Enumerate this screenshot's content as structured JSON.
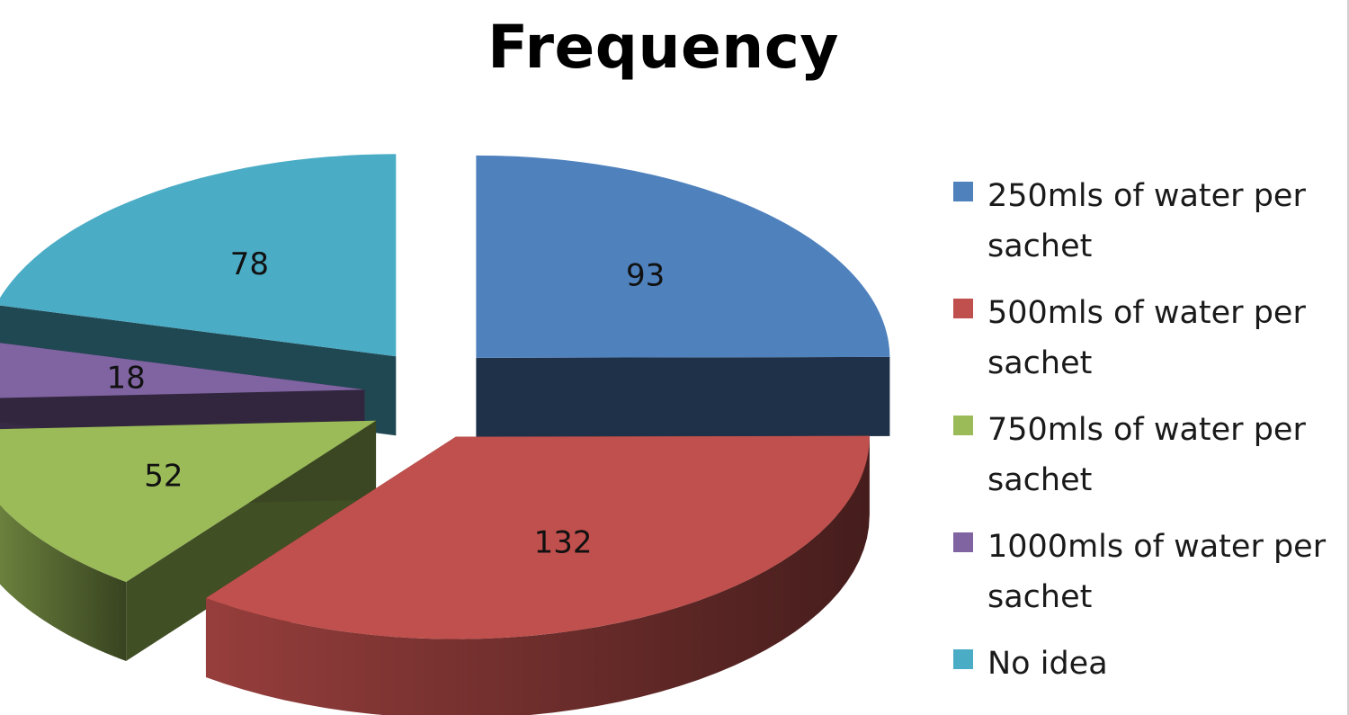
{
  "chart_data": {
    "type": "pie",
    "title": "Frequency",
    "categories": [
      "250mls of water per sachet",
      "500mls of water per sachet",
      "750mls of water per sachet",
      "1000mls of water per sachet",
      "No idea"
    ],
    "values": [
      93,
      132,
      52,
      18,
      78
    ],
    "colors": [
      "#4f81bd",
      "#c0504d",
      "#9bbb59",
      "#8064a2",
      "#4bacc6"
    ],
    "style": "3d-exploded",
    "legend": "right"
  }
}
